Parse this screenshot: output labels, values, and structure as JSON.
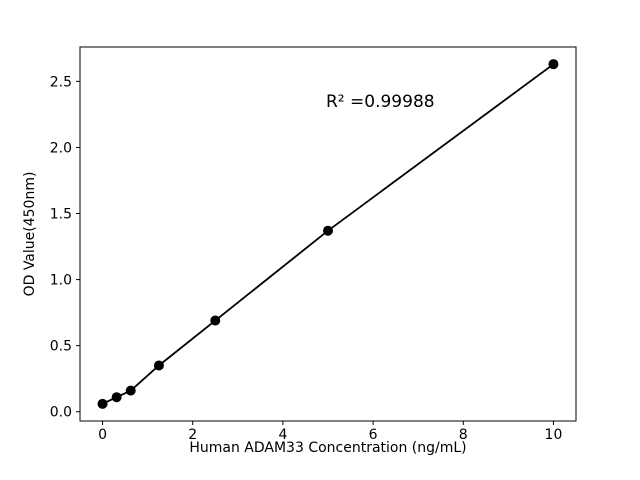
{
  "figure": {
    "background": "#ffffff",
    "plot_color": "#000000"
  },
  "chart_data": {
    "type": "scatter",
    "x": [
      0,
      0.3125,
      0.625,
      1.25,
      2.5,
      5,
      10
    ],
    "y": [
      0.06,
      0.11,
      0.16,
      0.35,
      0.69,
      1.37,
      2.63
    ],
    "line_through_points": true,
    "marker": "filled-circle",
    "color": "#000000",
    "title": "",
    "xlabel": "Human ADAM33 Concentration (ng/mL)",
    "ylabel": "OD Value(450nm)",
    "annotation": "R² =0.99988",
    "xlim": [
      -0.5,
      10.5
    ],
    "ylim": [
      -0.07,
      2.76
    ],
    "xticks": [
      0,
      2,
      4,
      6,
      8,
      10
    ],
    "yticks": [
      0.0,
      0.5,
      1.0,
      1.5,
      2.0,
      2.5
    ],
    "grid": false,
    "legend": null
  }
}
